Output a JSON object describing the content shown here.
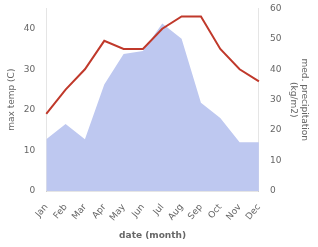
{
  "chart_data": {
    "type": "line",
    "categories": [
      "Jan",
      "Feb",
      "Mar",
      "Apr",
      "May",
      "Jun",
      "Jul",
      "Aug",
      "Sep",
      "Oct",
      "Nov",
      "Dec"
    ],
    "series": [
      {
        "type": "area",
        "axis": "y2",
        "color": "#bec8f0",
        "values": [
          17,
          22,
          17,
          35,
          45,
          46,
          55,
          50,
          29,
          24,
          16,
          16
        ]
      },
      {
        "type": "line",
        "color": "#c0392b",
        "values": [
          19,
          25,
          30,
          37,
          35,
          35,
          40,
          43,
          43,
          35,
          30,
          27
        ]
      }
    ],
    "xlabel": "date (month)",
    "ylabel": "max temp (C)",
    "y2label": "med. precipitation\n(kg/m2)",
    "ylim": [
      0,
      45
    ],
    "yticks": [
      0,
      10,
      20,
      30,
      40
    ],
    "y2lim": [
      0,
      60
    ],
    "y2ticks": [
      0,
      10,
      20,
      30,
      40,
      50,
      60
    ],
    "grid": false
  }
}
